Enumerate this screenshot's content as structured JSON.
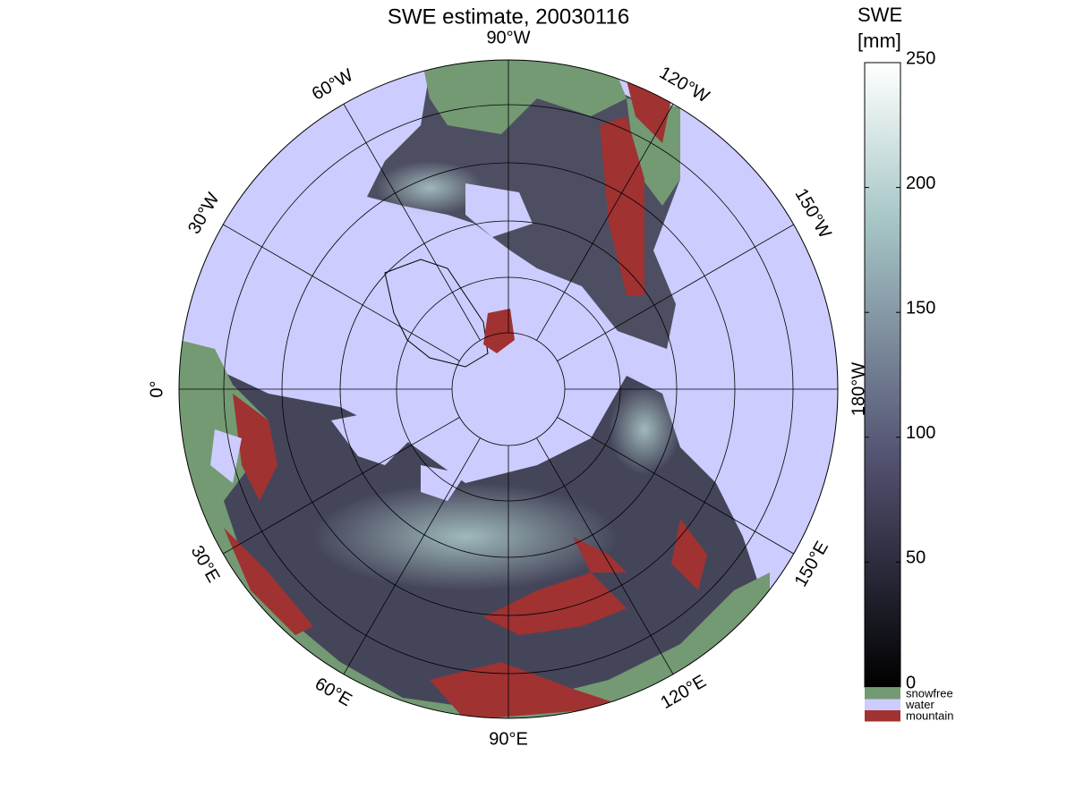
{
  "chart_data": {
    "type": "polar-map",
    "title": "SWE estimate, 20030116",
    "colorbar": {
      "label_lines": [
        "SWE",
        "[mm]"
      ],
      "clim": [
        0,
        250
      ],
      "ticks": [
        0,
        50,
        100,
        150,
        200,
        250
      ]
    },
    "legend": [
      {
        "name": "snowfree",
        "color": "#739a73"
      },
      {
        "name": "water",
        "color": "#ccccff"
      },
      {
        "name": "mountain",
        "color": "#a03232"
      }
    ],
    "meridians": [
      {
        "value": 0,
        "label": "0°"
      },
      {
        "value": 30,
        "label": "30°E"
      },
      {
        "value": 60,
        "label": "60°E"
      },
      {
        "value": 90,
        "label": "90°E"
      },
      {
        "value": 120,
        "label": "120°E"
      },
      {
        "value": 150,
        "label": "150°E"
      },
      {
        "value": 180,
        "label": "180°W"
      },
      {
        "value": -150,
        "label": "150°W"
      },
      {
        "value": -120,
        "label": "120°W"
      },
      {
        "value": -90,
        "label": "90°W"
      },
      {
        "value": -60,
        "label": "60°W"
      },
      {
        "value": -30,
        "label": "30°W"
      }
    ]
  }
}
